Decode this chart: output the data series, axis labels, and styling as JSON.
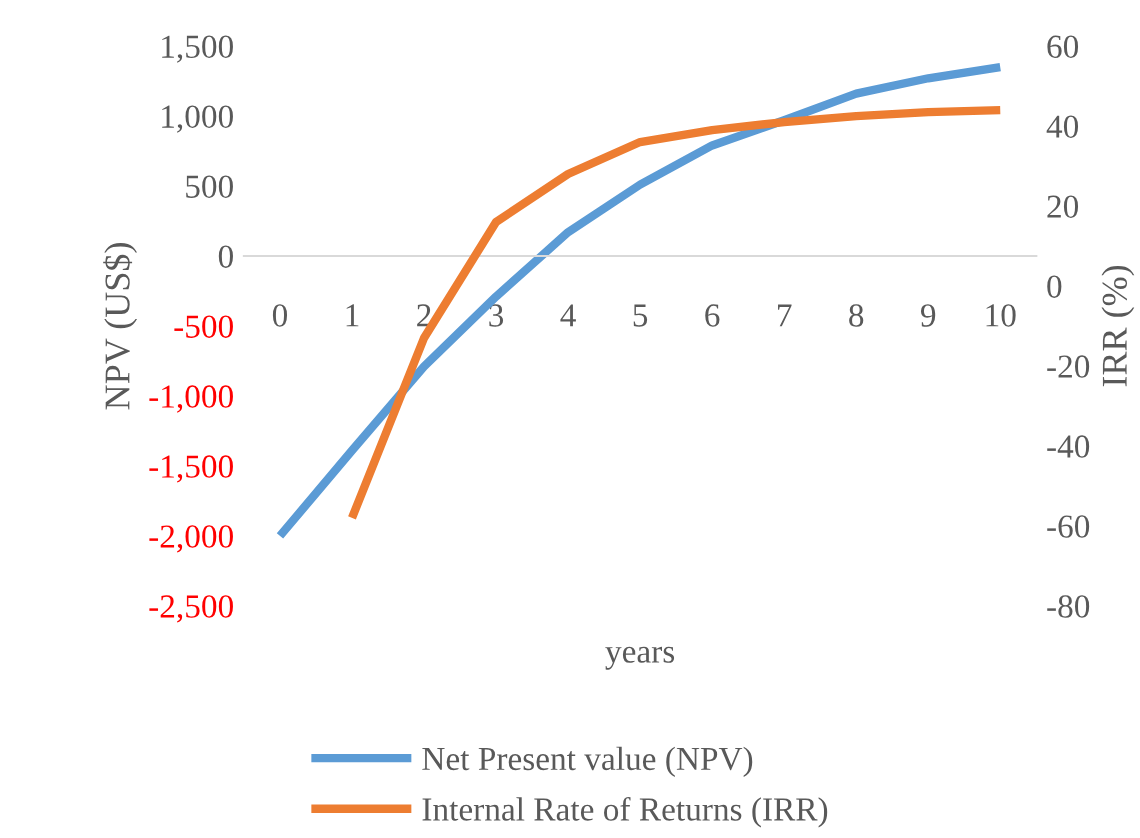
{
  "chart_data": {
    "type": "line",
    "xlabel": "years",
    "ylabel": "NPV (US$)",
    "y2label": "IRR (%)",
    "categories": [
      "0",
      "1",
      "2",
      "3",
      "4",
      "5",
      "6",
      "7",
      "8",
      "9",
      "10"
    ],
    "series": [
      {
        "name": "Net Present value (NPV)",
        "color": "#5b9bd5",
        "values": [
          -2000,
          -1390,
          -790,
          -290,
          170,
          510,
          790,
          970,
          1160,
          1270,
          1350
        ]
      },
      {
        "name": "Internal Rate of Returns (IRR)",
        "color": "#ed7d31",
        "axis": "y2",
        "values": [
          null,
          -58,
          -13,
          16,
          28,
          36,
          39,
          41,
          42.5,
          43.5,
          44
        ]
      }
    ],
    "ylim": [
      -2500,
      1500
    ],
    "yticks": [
      {
        "value": -2500,
        "label": "-2,500"
      },
      {
        "value": -2000,
        "label": "-2,000"
      },
      {
        "value": -1500,
        "label": "-1,500"
      },
      {
        "value": -1000,
        "label": "-1,000"
      },
      {
        "value": -500,
        "label": "-500"
      },
      0,
      500,
      {
        "value": 1000,
        "label": "1,000"
      },
      {
        "value": 1500,
        "label": "1,500"
      }
    ],
    "y2lim": [
      -80,
      60
    ],
    "y2ticks": [
      -80,
      -60,
      -40,
      -20,
      0,
      20,
      40,
      60
    ],
    "grid": false,
    "legend": "bottom",
    "marker": "none",
    "line_style": "solid"
  }
}
